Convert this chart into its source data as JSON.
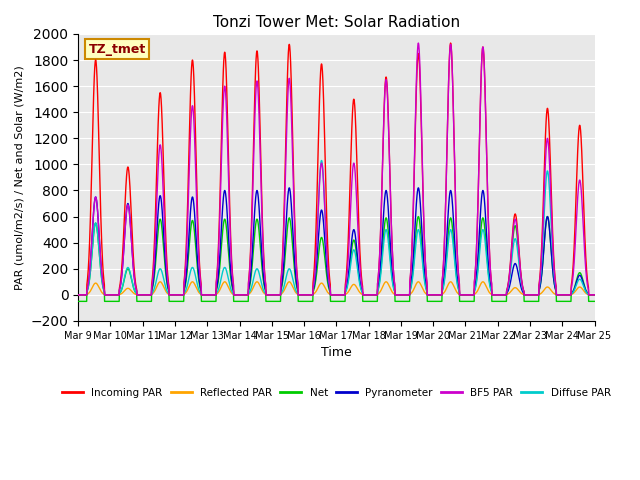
{
  "title": "Tonzi Tower Met: Solar Radiation",
  "ylabel": "PAR (umol/m2/s) / Net and Solar (W/m2)",
  "xlabel": "Time",
  "label_box": "TZ_tmet",
  "ylim": [
    -200,
    2000
  ],
  "yticks": [
    -200,
    0,
    200,
    400,
    600,
    800,
    1000,
    1200,
    1400,
    1600,
    1800,
    2000
  ],
  "start_day": 9,
  "num_days": 16,
  "colors": {
    "incoming_par": "#FF0000",
    "reflected_par": "#FFA500",
    "net": "#00CC00",
    "pyranometer": "#0000CC",
    "bf5_par": "#CC00CC",
    "diffuse_par": "#00CCCC"
  },
  "legend_labels": [
    "Incoming PAR",
    "Reflected PAR",
    "Net",
    "Pyranometer",
    "BF5 PAR",
    "Diffuse PAR"
  ],
  "background_color": "#E8E8E8",
  "grid_color": "#FFFFFF",
  "peak_incoming": [
    1800,
    980,
    1550,
    1800,
    1860,
    1870,
    1920,
    1770,
    1500,
    1670,
    1850,
    1930,
    1900,
    620,
    1430,
    1300
  ],
  "peak_pyranometer": [
    750,
    700,
    760,
    750,
    800,
    800,
    820,
    650,
    500,
    800,
    820,
    800,
    800,
    240,
    600,
    150
  ],
  "peak_bf5par": [
    750,
    690,
    1150,
    1450,
    1600,
    1640,
    1660,
    1010,
    1010,
    1650,
    1930,
    1920,
    1900,
    580,
    1200,
    880
  ],
  "peak_diffuse": [
    550,
    210,
    200,
    210,
    210,
    200,
    200,
    1030,
    345,
    500,
    500,
    500,
    500,
    430,
    950,
    120
  ],
  "peak_net": [
    550,
    200,
    580,
    570,
    580,
    580,
    590,
    440,
    420,
    590,
    600,
    590,
    590,
    530,
    600,
    170
  ],
  "peak_reflected": [
    90,
    50,
    100,
    100,
    100,
    100,
    100,
    90,
    80,
    100,
    100,
    100,
    100,
    55,
    60,
    60
  ]
}
